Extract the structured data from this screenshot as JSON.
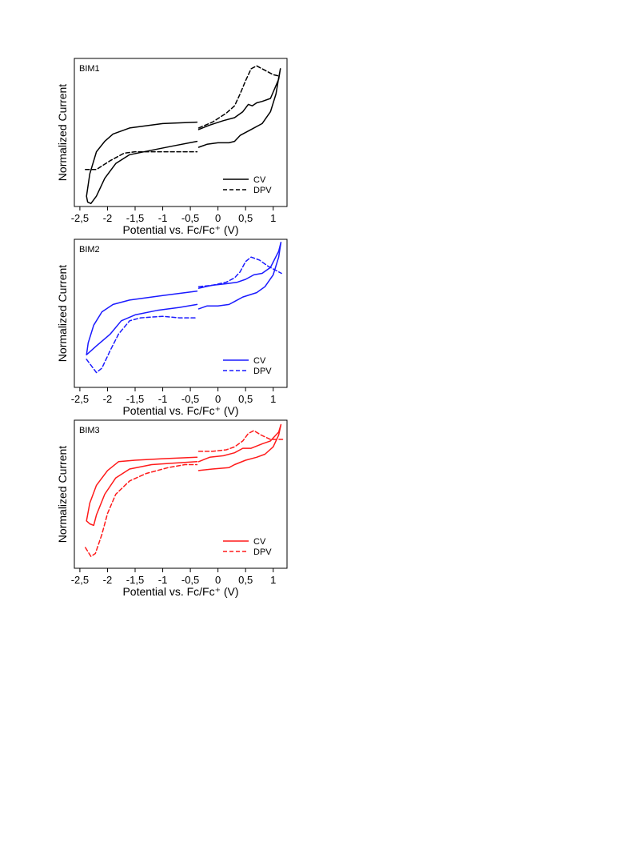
{
  "chart_data": [
    {
      "type": "line",
      "title": "BIM1",
      "xlabel": "Potential vs. Fc/Fc⁺ (V)",
      "ylabel": "Normalized Current",
      "xlim": [
        -2.6,
        1.25
      ],
      "ylim": [
        0,
        1
      ],
      "xticks": [
        {
          "v": -2.5,
          "label": "-2,5"
        },
        {
          "v": -2.0,
          "label": "-2"
        },
        {
          "v": -1.5,
          "label": "-1,5"
        },
        {
          "v": -1.0,
          "label": "-1"
        },
        {
          "v": -0.5,
          "label": "-0,5"
        },
        {
          "v": 0,
          "label": "0"
        },
        {
          "v": 0.5,
          "label": "0,5"
        },
        {
          "v": 1.0,
          "label": "1"
        }
      ],
      "color": "#000000",
      "legend": {
        "position": "bottom-right",
        "entries": [
          "CV",
          "DPV"
        ]
      },
      "series": [
        {
          "name": "CV",
          "style": "solid",
          "segments": [
            [
              [
                -0.38,
                0.57
              ],
              [
                -1.0,
                0.56
              ],
              [
                -1.6,
                0.53
              ],
              [
                -1.9,
                0.49
              ],
              [
                -2.05,
                0.44
              ],
              [
                -2.2,
                0.37
              ],
              [
                -2.32,
                0.22
              ],
              [
                -2.38,
                0.07
              ],
              [
                -2.36,
                0.03
              ],
              [
                -2.3,
                0.02
              ],
              [
                -2.2,
                0.07
              ],
              [
                -2.05,
                0.19
              ],
              [
                -1.85,
                0.29
              ],
              [
                -1.6,
                0.35
              ],
              [
                -1.2,
                0.38
              ],
              [
                -0.8,
                0.41
              ],
              [
                -0.38,
                0.44
              ]
            ],
            [
              [
                -0.35,
                0.4
              ],
              [
                -0.2,
                0.42
              ],
              [
                0,
                0.43
              ],
              [
                0.2,
                0.43
              ],
              [
                0.3,
                0.44
              ],
              [
                0.4,
                0.48
              ],
              [
                0.6,
                0.52
              ],
              [
                0.8,
                0.56
              ],
              [
                0.95,
                0.64
              ],
              [
                1.05,
                0.76
              ],
              [
                1.1,
                0.87
              ],
              [
                1.13,
                0.93
              ],
              [
                1.1,
                0.86
              ],
              [
                0.95,
                0.73
              ],
              [
                0.8,
                0.71
              ],
              [
                0.7,
                0.7
              ],
              [
                0.62,
                0.68
              ],
              [
                0.55,
                0.69
              ],
              [
                0.45,
                0.64
              ],
              [
                0.3,
                0.6
              ],
              [
                0.1,
                0.58
              ],
              [
                -0.15,
                0.55
              ],
              [
                -0.35,
                0.52
              ]
            ]
          ]
        },
        {
          "name": "DPV",
          "style": "dashed",
          "segments": [
            [
              [
                -2.4,
                0.25
              ],
              [
                -2.2,
                0.25
              ],
              [
                -1.95,
                0.31
              ],
              [
                -1.7,
                0.36
              ],
              [
                -1.5,
                0.37
              ],
              [
                -1.2,
                0.37
              ],
              [
                -0.8,
                0.37
              ],
              [
                -0.38,
                0.37
              ]
            ],
            [
              [
                -0.35,
                0.53
              ],
              [
                -0.1,
                0.57
              ],
              [
                0.15,
                0.63
              ],
              [
                0.3,
                0.68
              ],
              [
                0.4,
                0.76
              ],
              [
                0.5,
                0.85
              ],
              [
                0.6,
                0.93
              ],
              [
                0.7,
                0.95
              ],
              [
                0.85,
                0.92
              ],
              [
                1.0,
                0.89
              ],
              [
                1.12,
                0.88
              ]
            ]
          ]
        }
      ]
    },
    {
      "type": "line",
      "title": "BIM2",
      "xlabel": "Potential vs. Fc/Fc⁺ (V)",
      "ylabel": "Normalized Current",
      "xlim": [
        -2.6,
        1.25
      ],
      "ylim": [
        0,
        1
      ],
      "xticks": [
        {
          "v": -2.5,
          "label": "-2,5"
        },
        {
          "v": -2.0,
          "label": "-2"
        },
        {
          "v": -1.5,
          "label": "-1,5"
        },
        {
          "v": -1.0,
          "label": "-1"
        },
        {
          "v": -0.5,
          "label": "-0,5"
        },
        {
          "v": 0,
          "label": "0"
        },
        {
          "v": 0.5,
          "label": "0,5"
        },
        {
          "v": 1.0,
          "label": "1"
        }
      ],
      "color": "#1a1aff",
      "legend": {
        "position": "bottom-right",
        "entries": [
          "CV",
          "DPV"
        ]
      },
      "series": [
        {
          "name": "CV",
          "style": "solid",
          "segments": [
            [
              [
                -0.38,
                0.65
              ],
              [
                -1.0,
                0.62
              ],
              [
                -1.6,
                0.59
              ],
              [
                -1.9,
                0.56
              ],
              [
                -2.1,
                0.51
              ],
              [
                -2.25,
                0.42
              ],
              [
                -2.35,
                0.3
              ],
              [
                -2.38,
                0.22
              ],
              [
                -2.2,
                0.28
              ],
              [
                -1.95,
                0.36
              ],
              [
                -1.75,
                0.45
              ],
              [
                -1.5,
                0.49
              ],
              [
                -1.1,
                0.52
              ],
              [
                -0.7,
                0.54
              ],
              [
                -0.38,
                0.56
              ]
            ],
            [
              [
                -0.35,
                0.53
              ],
              [
                -0.2,
                0.55
              ],
              [
                0,
                0.55
              ],
              [
                0.2,
                0.56
              ],
              [
                0.3,
                0.58
              ],
              [
                0.45,
                0.61
              ],
              [
                0.7,
                0.64
              ],
              [
                0.85,
                0.68
              ],
              [
                1.0,
                0.76
              ],
              [
                1.1,
                0.88
              ],
              [
                1.14,
                0.98
              ],
              [
                1.1,
                0.92
              ],
              [
                0.95,
                0.81
              ],
              [
                0.8,
                0.77
              ],
              [
                0.65,
                0.76
              ],
              [
                0.5,
                0.73
              ],
              [
                0.35,
                0.71
              ],
              [
                0.15,
                0.7
              ],
              [
                -0.1,
                0.69
              ],
              [
                -0.35,
                0.67
              ]
            ]
          ]
        },
        {
          "name": "DPV",
          "style": "dashed",
          "segments": [
            [
              [
                -2.38,
                0.19
              ],
              [
                -2.2,
                0.1
              ],
              [
                -2.1,
                0.13
              ],
              [
                -1.95,
                0.25
              ],
              [
                -1.8,
                0.36
              ],
              [
                -1.6,
                0.45
              ],
              [
                -1.4,
                0.47
              ],
              [
                -1.0,
                0.48
              ],
              [
                -0.7,
                0.47
              ],
              [
                -0.38,
                0.47
              ]
            ],
            [
              [
                -0.35,
                0.68
              ],
              [
                -0.1,
                0.69
              ],
              [
                0.15,
                0.71
              ],
              [
                0.3,
                0.74
              ],
              [
                0.4,
                0.78
              ],
              [
                0.5,
                0.85
              ],
              [
                0.6,
                0.88
              ],
              [
                0.75,
                0.86
              ],
              [
                0.9,
                0.82
              ],
              [
                1.05,
                0.79
              ],
              [
                1.15,
                0.77
              ]
            ]
          ]
        }
      ]
    },
    {
      "type": "line",
      "title": "BIM3",
      "xlabel": "Potential vs. Fc/Fc⁺ (V)",
      "ylabel": "Normalized Current",
      "xlim": [
        -2.6,
        1.25
      ],
      "ylim": [
        0,
        1
      ],
      "xticks": [
        {
          "v": -2.5,
          "label": "-2,5"
        },
        {
          "v": -2.0,
          "label": "-2"
        },
        {
          "v": -1.5,
          "label": "-1,5"
        },
        {
          "v": -1.0,
          "label": "-1"
        },
        {
          "v": -0.5,
          "label": "-0,5"
        },
        {
          "v": 0,
          "label": "0"
        },
        {
          "v": 0.5,
          "label": "0,5"
        },
        {
          "v": 1.0,
          "label": "1"
        }
      ],
      "color": "#ff1a1a",
      "legend": {
        "position": "bottom-right",
        "entries": [
          "CV",
          "DPV"
        ]
      },
      "series": [
        {
          "name": "CV",
          "style": "solid",
          "segments": [
            [
              [
                -0.38,
                0.75
              ],
              [
                -1.0,
                0.74
              ],
              [
                -1.5,
                0.73
              ],
              [
                -1.8,
                0.72
              ],
              [
                -2.0,
                0.66
              ],
              [
                -2.2,
                0.56
              ],
              [
                -2.32,
                0.44
              ],
              [
                -2.38,
                0.32
              ],
              [
                -2.32,
                0.3
              ],
              [
                -2.25,
                0.29
              ],
              [
                -2.2,
                0.36
              ],
              [
                -2.05,
                0.5
              ],
              [
                -1.85,
                0.61
              ],
              [
                -1.6,
                0.67
              ],
              [
                -1.2,
                0.7
              ],
              [
                -0.8,
                0.71
              ],
              [
                -0.38,
                0.72
              ]
            ],
            [
              [
                -0.35,
                0.66
              ],
              [
                -0.1,
                0.67
              ],
              [
                0.2,
                0.68
              ],
              [
                0.3,
                0.7
              ],
              [
                0.5,
                0.73
              ],
              [
                0.7,
                0.75
              ],
              [
                0.85,
                0.77
              ],
              [
                1.0,
                0.82
              ],
              [
                1.1,
                0.9
              ],
              [
                1.14,
                0.97
              ],
              [
                1.1,
                0.92
              ],
              [
                0.95,
                0.86
              ],
              [
                0.8,
                0.84
              ],
              [
                0.6,
                0.81
              ],
              [
                0.45,
                0.81
              ],
              [
                0.3,
                0.78
              ],
              [
                0.1,
                0.76
              ],
              [
                -0.15,
                0.75
              ],
              [
                -0.35,
                0.72
              ]
            ]
          ]
        },
        {
          "name": "DPV",
          "style": "dashed",
          "segments": [
            [
              [
                -2.4,
                0.14
              ],
              [
                -2.3,
                0.08
              ],
              [
                -2.22,
                0.1
              ],
              [
                -2.1,
                0.23
              ],
              [
                -2.0,
                0.37
              ],
              [
                -1.85,
                0.5
              ],
              [
                -1.6,
                0.59
              ],
              [
                -1.3,
                0.64
              ],
              [
                -0.9,
                0.68
              ],
              [
                -0.6,
                0.7
              ],
              [
                -0.38,
                0.7
              ]
            ],
            [
              [
                -0.35,
                0.79
              ],
              [
                -0.1,
                0.79
              ],
              [
                0.15,
                0.8
              ],
              [
                0.3,
                0.82
              ],
              [
                0.45,
                0.86
              ],
              [
                0.55,
                0.91
              ],
              [
                0.65,
                0.93
              ],
              [
                0.78,
                0.9
              ],
              [
                0.95,
                0.87
              ],
              [
                1.1,
                0.87
              ],
              [
                1.17,
                0.87
              ]
            ]
          ]
        }
      ]
    }
  ]
}
